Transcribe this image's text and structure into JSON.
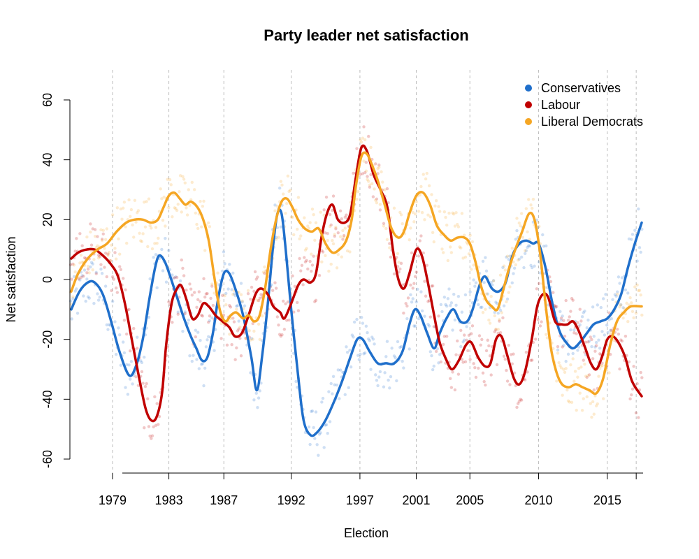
{
  "chart_data": {
    "type": "line",
    "title": "Party leader net satisfaction",
    "xlabel": "Election",
    "ylabel": "Net satisfaction",
    "xlim": [
      1976.2,
      2017.9
    ],
    "ylim": [
      -60,
      60
    ],
    "y_ticks": [
      -60,
      -40,
      -20,
      0,
      20,
      40,
      60
    ],
    "x_ticks": [
      {
        "year": 1979.3,
        "label": "1979"
      },
      {
        "year": 1983.4,
        "label": "1983"
      },
      {
        "year": 1987.4,
        "label": "1987"
      },
      {
        "year": 1992.3,
        "label": "1992"
      },
      {
        "year": 1997.3,
        "label": "1997"
      },
      {
        "year": 2001.4,
        "label": "2001"
      },
      {
        "year": 2005.3,
        "label": "2005"
      },
      {
        "year": 2010.3,
        "label": "2010"
      },
      {
        "year": 2015.3,
        "label": "2015"
      },
      {
        "year": 2017.4,
        "label": ""
      }
    ],
    "grid": "dashed vertical lines at elections",
    "legend_position": "top-right",
    "series": [
      {
        "name": "Conservatives",
        "color": "#1f6fcb",
        "points": [
          [
            1976.3,
            -10
          ],
          [
            1976.9,
            -4
          ],
          [
            1977.5,
            -1
          ],
          [
            1978.0,
            -1
          ],
          [
            1978.6,
            -5
          ],
          [
            1979.2,
            -14
          ],
          [
            1979.8,
            -24
          ],
          [
            1980.5,
            -32
          ],
          [
            1981.0,
            -29
          ],
          [
            1981.5,
            -20
          ],
          [
            1982.0,
            -6
          ],
          [
            1982.4,
            4
          ],
          [
            1982.7,
            8
          ],
          [
            1983.1,
            6
          ],
          [
            1983.5,
            1
          ],
          [
            1984.0,
            -6
          ],
          [
            1984.5,
            -13
          ],
          [
            1985.0,
            -19
          ],
          [
            1985.4,
            -23
          ],
          [
            1985.8,
            -27
          ],
          [
            1986.2,
            -26
          ],
          [
            1986.6,
            -18
          ],
          [
            1987.0,
            -6
          ],
          [
            1987.4,
            2
          ],
          [
            1987.8,
            2
          ],
          [
            1988.3,
            -4
          ],
          [
            1988.8,
            -12
          ],
          [
            1989.4,
            -26
          ],
          [
            1989.8,
            -37
          ],
          [
            1990.2,
            -25
          ],
          [
            1990.6,
            -8
          ],
          [
            1991.0,
            12
          ],
          [
            1991.3,
            22
          ],
          [
            1991.6,
            22
          ],
          [
            1991.9,
            10
          ],
          [
            1992.3,
            -10
          ],
          [
            1992.8,
            -32
          ],
          [
            1993.2,
            -47
          ],
          [
            1993.7,
            -52
          ],
          [
            1994.2,
            -51
          ],
          [
            1994.8,
            -47
          ],
          [
            1995.4,
            -41
          ],
          [
            1996.0,
            -34
          ],
          [
            1996.6,
            -26
          ],
          [
            1997.1,
            -20
          ],
          [
            1997.5,
            -20
          ],
          [
            1998.0,
            -24
          ],
          [
            1998.6,
            -28
          ],
          [
            1999.2,
            -28
          ],
          [
            1999.8,
            -28
          ],
          [
            2000.4,
            -24
          ],
          [
            2000.9,
            -15
          ],
          [
            2001.3,
            -10
          ],
          [
            2001.7,
            -12
          ],
          [
            2002.2,
            -18
          ],
          [
            2002.7,
            -23
          ],
          [
            2003.1,
            -18
          ],
          [
            2003.6,
            -13
          ],
          [
            2004.1,
            -10
          ],
          [
            2004.6,
            -14
          ],
          [
            2005.1,
            -14
          ],
          [
            2005.5,
            -10
          ],
          [
            2006.0,
            -2
          ],
          [
            2006.4,
            1
          ],
          [
            2006.9,
            -3
          ],
          [
            2007.4,
            -4
          ],
          [
            2007.9,
            -1
          ],
          [
            2008.4,
            8
          ],
          [
            2008.9,
            12
          ],
          [
            2009.4,
            13
          ],
          [
            2009.9,
            12
          ],
          [
            2010.3,
            12
          ],
          [
            2010.8,
            4
          ],
          [
            2011.3,
            -8
          ],
          [
            2011.8,
            -17
          ],
          [
            2012.3,
            -21
          ],
          [
            2012.8,
            -23
          ],
          [
            2013.3,
            -21
          ],
          [
            2013.8,
            -18
          ],
          [
            2014.3,
            -15
          ],
          [
            2014.8,
            -14
          ],
          [
            2015.3,
            -13
          ],
          [
            2015.8,
            -10
          ],
          [
            2016.3,
            -5
          ],
          [
            2016.8,
            4
          ],
          [
            2017.3,
            12
          ],
          [
            2017.8,
            19
          ]
        ]
      },
      {
        "name": "Labour",
        "color": "#c00000",
        "points": [
          [
            1976.3,
            7
          ],
          [
            1976.8,
            9
          ],
          [
            1977.4,
            10
          ],
          [
            1978.0,
            10
          ],
          [
            1978.6,
            8
          ],
          [
            1979.2,
            5
          ],
          [
            1979.7,
            1
          ],
          [
            1980.2,
            -8
          ],
          [
            1980.7,
            -20
          ],
          [
            1981.2,
            -32
          ],
          [
            1981.7,
            -43
          ],
          [
            1982.1,
            -47
          ],
          [
            1982.5,
            -46
          ],
          [
            1982.9,
            -38
          ],
          [
            1983.2,
            -22
          ],
          [
            1983.6,
            -8
          ],
          [
            1984.0,
            -3
          ],
          [
            1984.3,
            -2
          ],
          [
            1984.7,
            -7
          ],
          [
            1985.1,
            -13
          ],
          [
            1985.5,
            -12
          ],
          [
            1985.9,
            -8
          ],
          [
            1986.3,
            -9
          ],
          [
            1986.8,
            -12
          ],
          [
            1987.3,
            -14
          ],
          [
            1987.8,
            -16
          ],
          [
            1988.2,
            -19
          ],
          [
            1988.7,
            -18
          ],
          [
            1989.2,
            -12
          ],
          [
            1989.7,
            -5
          ],
          [
            1990.1,
            -3
          ],
          [
            1990.6,
            -5
          ],
          [
            1991.0,
            -9
          ],
          [
            1991.5,
            -11
          ],
          [
            1991.8,
            -13
          ],
          [
            1992.3,
            -8
          ],
          [
            1992.8,
            -2
          ],
          [
            1993.2,
            0
          ],
          [
            1993.7,
            -1
          ],
          [
            1994.1,
            2
          ],
          [
            1994.5,
            14
          ],
          [
            1994.9,
            22
          ],
          [
            1995.3,
            25
          ],
          [
            1995.7,
            20
          ],
          [
            1996.2,
            19
          ],
          [
            1996.6,
            22
          ],
          [
            1997.0,
            34
          ],
          [
            1997.4,
            44
          ],
          [
            1997.8,
            43
          ],
          [
            1998.3,
            35
          ],
          [
            1998.8,
            30
          ],
          [
            1999.3,
            24
          ],
          [
            1999.7,
            10
          ],
          [
            2000.1,
            0
          ],
          [
            2000.5,
            -3
          ],
          [
            2000.9,
            2
          ],
          [
            2001.4,
            10
          ],
          [
            2001.8,
            8
          ],
          [
            2002.2,
            0
          ],
          [
            2002.7,
            -12
          ],
          [
            2003.1,
            -21
          ],
          [
            2003.6,
            -27
          ],
          [
            2004.0,
            -30
          ],
          [
            2004.5,
            -27
          ],
          [
            2005.0,
            -22
          ],
          [
            2005.4,
            -21
          ],
          [
            2005.9,
            -26
          ],
          [
            2006.4,
            -29
          ],
          [
            2006.8,
            -28
          ],
          [
            2007.2,
            -20
          ],
          [
            2007.6,
            -19
          ],
          [
            2008.0,
            -25
          ],
          [
            2008.5,
            -33
          ],
          [
            2008.9,
            -35
          ],
          [
            2009.3,
            -31
          ],
          [
            2009.8,
            -20
          ],
          [
            2010.2,
            -9
          ],
          [
            2010.6,
            -5
          ],
          [
            2011.0,
            -6
          ],
          [
            2011.5,
            -14
          ],
          [
            2012.0,
            -15
          ],
          [
            2012.4,
            -15
          ],
          [
            2012.8,
            -14
          ],
          [
            2013.2,
            -17
          ],
          [
            2013.7,
            -23
          ],
          [
            2014.1,
            -28
          ],
          [
            2014.5,
            -30
          ],
          [
            2014.9,
            -26
          ],
          [
            2015.3,
            -20
          ],
          [
            2015.7,
            -19
          ],
          [
            2016.1,
            -21
          ],
          [
            2016.6,
            -26
          ],
          [
            2017.1,
            -34
          ],
          [
            2017.8,
            -39
          ]
        ]
      },
      {
        "name": "Liberal Democrats",
        "color": "#f5a623",
        "points": [
          [
            1976.3,
            -4
          ],
          [
            1976.8,
            2
          ],
          [
            1977.5,
            7
          ],
          [
            1978.2,
            10
          ],
          [
            1978.9,
            12
          ],
          [
            1979.6,
            16
          ],
          [
            1980.3,
            19
          ],
          [
            1980.9,
            20
          ],
          [
            1981.5,
            20
          ],
          [
            1982.1,
            19
          ],
          [
            1982.6,
            20
          ],
          [
            1983.0,
            24
          ],
          [
            1983.4,
            28
          ],
          [
            1983.8,
            29
          ],
          [
            1984.2,
            27
          ],
          [
            1984.6,
            25
          ],
          [
            1985.0,
            26
          ],
          [
            1985.5,
            24
          ],
          [
            1985.9,
            20
          ],
          [
            1986.3,
            13
          ],
          [
            1986.7,
            1
          ],
          [
            1987.1,
            -10
          ],
          [
            1987.5,
            -14
          ],
          [
            1987.9,
            -12
          ],
          [
            1988.3,
            -11
          ],
          [
            1988.8,
            -13
          ],
          [
            1989.2,
            -12
          ],
          [
            1989.6,
            -14
          ],
          [
            1990.0,
            -12
          ],
          [
            1990.4,
            -3
          ],
          [
            1990.8,
            10
          ],
          [
            1991.2,
            20
          ],
          [
            1991.6,
            26
          ],
          [
            1992.0,
            27
          ],
          [
            1992.4,
            24
          ],
          [
            1992.8,
            20
          ],
          [
            1993.3,
            17
          ],
          [
            1993.8,
            16
          ],
          [
            1994.3,
            17
          ],
          [
            1994.8,
            12
          ],
          [
            1995.3,
            9
          ],
          [
            1995.8,
            10
          ],
          [
            1996.3,
            13
          ],
          [
            1996.7,
            20
          ],
          [
            1997.0,
            31
          ],
          [
            1997.4,
            41
          ],
          [
            1997.8,
            42
          ],
          [
            1998.2,
            38
          ],
          [
            1998.6,
            33
          ],
          [
            1999.1,
            25
          ],
          [
            1999.6,
            17
          ],
          [
            2000.1,
            14
          ],
          [
            2000.5,
            16
          ],
          [
            2000.9,
            22
          ],
          [
            2001.4,
            28
          ],
          [
            2001.9,
            29
          ],
          [
            2002.4,
            25
          ],
          [
            2002.9,
            18
          ],
          [
            2003.4,
            15
          ],
          [
            2003.9,
            13
          ],
          [
            2004.4,
            14
          ],
          [
            2004.9,
            14
          ],
          [
            2005.3,
            12
          ],
          [
            2005.7,
            6
          ],
          [
            2006.1,
            -2
          ],
          [
            2006.5,
            -7
          ],
          [
            2006.9,
            -9
          ],
          [
            2007.3,
            -10
          ],
          [
            2007.7,
            -4
          ],
          [
            2008.1,
            3
          ],
          [
            2008.6,
            10
          ],
          [
            2009.1,
            16
          ],
          [
            2009.6,
            22
          ],
          [
            2010.0,
            20
          ],
          [
            2010.4,
            9
          ],
          [
            2010.8,
            -8
          ],
          [
            2011.2,
            -23
          ],
          [
            2011.6,
            -31
          ],
          [
            2012.0,
            -35
          ],
          [
            2012.5,
            -36
          ],
          [
            2013.0,
            -35
          ],
          [
            2013.5,
            -36
          ],
          [
            2014.0,
            -37
          ],
          [
            2014.5,
            -38
          ],
          [
            2015.0,
            -33
          ],
          [
            2015.5,
            -22
          ],
          [
            2016.0,
            -14
          ],
          [
            2016.5,
            -11
          ],
          [
            2017.0,
            -9
          ],
          [
            2017.8,
            -9
          ]
        ]
      }
    ]
  }
}
